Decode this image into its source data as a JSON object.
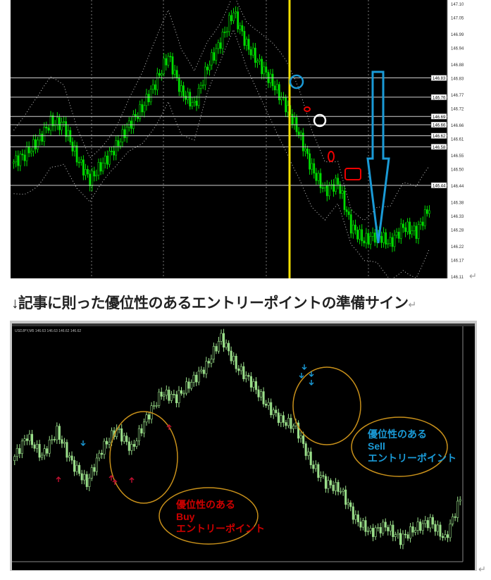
{
  "caption": "↓記事に則った優位性のあるエントリーポイントの準備サイン",
  "colors": {
    "background": "#000000",
    "candle_top": "#00dd00",
    "candle_bottom": "#9adf8a",
    "marker_line": "#f5e000",
    "sell_color": "#1a9ad6",
    "buy_color": "#cc0000",
    "ellipse": "#c8901a"
  },
  "chart_data": [
    {
      "type": "candlestick",
      "ylim": [
        146.11,
        147.1
      ],
      "y_ticks": [
        "147.10",
        "147.05",
        "146.99",
        "146.94",
        "146.88",
        "146.83",
        "146.77",
        "146.72",
        "146.66",
        "146.61",
        "146.55",
        "146.50",
        "146.44",
        "146.38",
        "146.33",
        "146.28",
        "146.22",
        "146.17",
        "146.11"
      ],
      "price_lines": [
        "146.83",
        "146.76",
        "146.69",
        "146.66",
        "146.62",
        "146.58",
        "146.44"
      ],
      "indicator": "bollinger bands (dotted)",
      "close": [
        146.52,
        146.55,
        146.6,
        146.67,
        146.66,
        146.54,
        146.46,
        146.52,
        146.58,
        146.66,
        146.72,
        146.81,
        146.91,
        146.78,
        146.73,
        146.87,
        146.96,
        147.07,
        146.95,
        146.88,
        146.81,
        146.73,
        146.63,
        146.5,
        146.42,
        146.45,
        146.29,
        146.24,
        146.26,
        146.23,
        146.29,
        146.27,
        146.36
      ],
      "markers": {
        "vertical_line": "yellow",
        "annotations": [
          "blue circle",
          "red circle",
          "white circle",
          "red circle",
          "red rectangle",
          "blue down arrow"
        ]
      }
    },
    {
      "type": "candlestick",
      "header": "USDJPY,M5 146.63 146.63 146.62 146.62",
      "ylim": [
        146.1,
        147.1
      ],
      "close": [
        146.54,
        146.65,
        146.56,
        146.67,
        146.53,
        146.44,
        146.59,
        146.68,
        146.59,
        146.73,
        146.84,
        146.82,
        146.89,
        146.96,
        147.09,
        146.96,
        146.89,
        146.79,
        146.72,
        146.69,
        146.53,
        146.44,
        146.41,
        146.28,
        146.22,
        146.25,
        146.19,
        146.24,
        146.27,
        146.19,
        146.37
      ],
      "buy_arrows": 5,
      "sell_arrows": 5,
      "labels": {
        "buy": [
          "優位性のある",
          "Buy",
          "エントリーポイント"
        ],
        "sell": [
          "優位性のある",
          "Sell",
          "エントリーポイント"
        ]
      }
    }
  ]
}
